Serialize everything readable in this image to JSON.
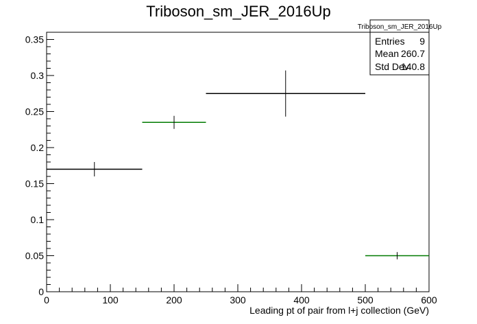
{
  "chart_data": {
    "type": "histogram",
    "title": "Triboson_sm_JER_2016Up",
    "xlabel": "Leading pt of pair from l+j collection (GeV)",
    "ylabel": "",
    "xlim": [
      0,
      600
    ],
    "ylim": [
      0,
      0.36
    ],
    "x_ticks": [
      0,
      100,
      200,
      300,
      400,
      500,
      600
    ],
    "x_tick_labels": [
      "0",
      "100",
      "200",
      "300",
      "400",
      "500",
      "600"
    ],
    "y_ticks": [
      0,
      0.05,
      0.1,
      0.15,
      0.2,
      0.25,
      0.3,
      0.35
    ],
    "y_tick_labels": [
      "0",
      "0.05",
      "0.1",
      "0.15",
      "0.2",
      "0.25",
      "0.3",
      "0.35"
    ],
    "grid": false,
    "bins": [
      {
        "x_low": 0,
        "x_high": 150,
        "center": 75,
        "value": 0.17,
        "error": 0.01,
        "color": "#000000"
      },
      {
        "x_low": 150,
        "x_high": 250,
        "center": 200,
        "value": 0.235,
        "error": 0.009,
        "color": "#007a00"
      },
      {
        "x_low": 250,
        "x_high": 500,
        "center": 375,
        "value": 0.275,
        "error": 0.032,
        "color": "#000000"
      },
      {
        "x_low": 500,
        "x_high": 600,
        "center": 550,
        "value": 0.05,
        "error": 0.005,
        "color": "#007a00"
      }
    ],
    "stats_box": {
      "title": "Triboson_sm_JER_2016Up",
      "rows": [
        {
          "label": "Entries",
          "value": "9"
        },
        {
          "label": "Mean",
          "value": "260.7"
        },
        {
          "label": "Std Dev",
          "value": "140.8"
        }
      ]
    }
  }
}
